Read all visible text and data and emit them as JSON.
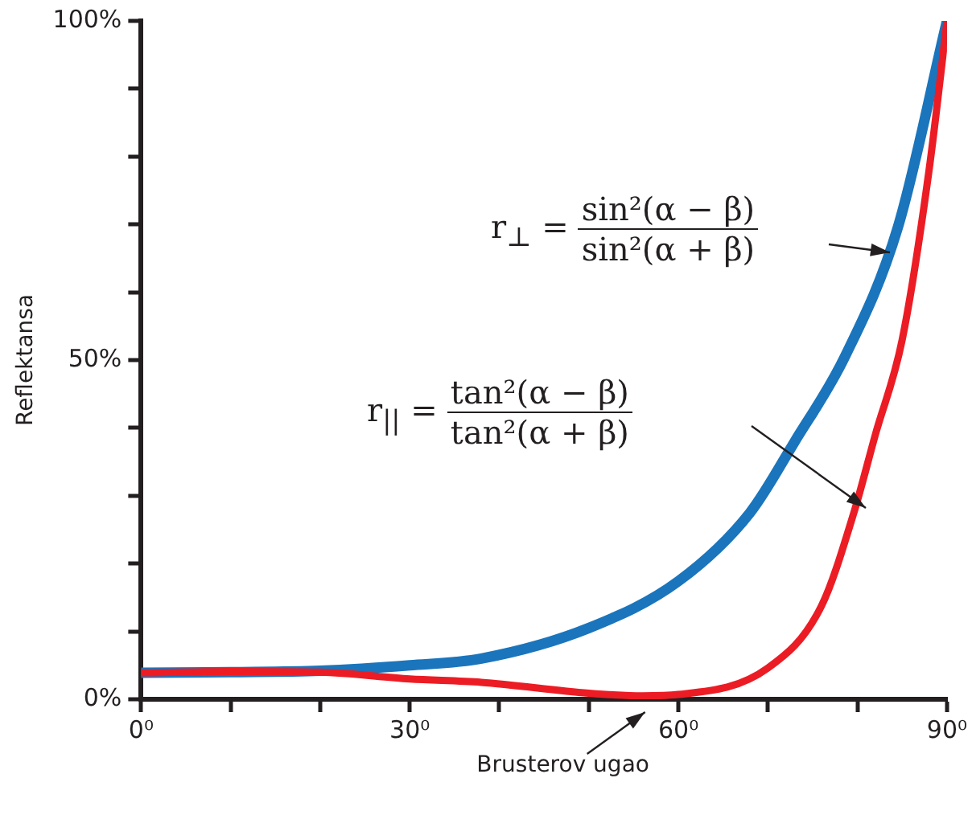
{
  "chart_data": {
    "type": "line",
    "ylabel": "Reflektansa",
    "xlim": [
      0,
      90
    ],
    "xticks": [
      {
        "value": 0,
        "label": "0⁰"
      },
      {
        "value": 10,
        "label": null
      },
      {
        "value": 20,
        "label": null
      },
      {
        "value": 30,
        "label": "30⁰"
      },
      {
        "value": 40,
        "label": null
      },
      {
        "value": 50,
        "label": null
      },
      {
        "value": 60,
        "label": "60⁰"
      },
      {
        "value": 70,
        "label": null
      },
      {
        "value": 80,
        "label": null
      },
      {
        "value": 90,
        "label": "90⁰"
      }
    ],
    "ylim": [
      0,
      100
    ],
    "yticks": [
      {
        "value": 0,
        "label": "0%"
      },
      {
        "value": 10,
        "label": null
      },
      {
        "value": 20,
        "label": null
      },
      {
        "value": 30,
        "label": null
      },
      {
        "value": 40,
        "label": null
      },
      {
        "value": 50,
        "label": "50%"
      },
      {
        "value": 60,
        "label": null
      },
      {
        "value": 70,
        "label": null
      },
      {
        "value": 80,
        "label": null
      },
      {
        "value": 90,
        "label": null
      },
      {
        "value": 100,
        "label": "100%"
      }
    ],
    "grid": false,
    "legend": false,
    "marker": "none",
    "line_style": "solid",
    "series": [
      {
        "color": "#1a75bc",
        "x": [
          0,
          10,
          20,
          30,
          38,
          50,
          60,
          68,
          73,
          78.6,
          84.5,
          90
        ],
        "values": [
          3.9,
          4,
          4.2,
          5,
          6,
          10.5,
          17.4,
          27.5,
          38,
          50.5,
          69.5,
          100
        ]
      },
      {
        "color": "#ec1c24",
        "x": [
          0,
          10,
          20,
          30,
          38,
          50,
          56,
          60,
          70,
          76,
          79.6,
          82,
          85,
          88,
          90
        ],
        "values": [
          3.9,
          4.1,
          4,
          3,
          2.5,
          0.9,
          0.5,
          0.7,
          4.6,
          13.8,
          27.5,
          39,
          53,
          78,
          100
        ]
      }
    ],
    "annotations": [
      "r$_{⊥}$ =",
      "sin²(α − β)",
      "sin²(α + β)",
      "r$_{||}$ =",
      "tan²(α − β)",
      "tan²(α + β)",
      {
        "text": "Brusterov ugao",
        "x": 57,
        "y": 0
      }
    ]
  }
}
